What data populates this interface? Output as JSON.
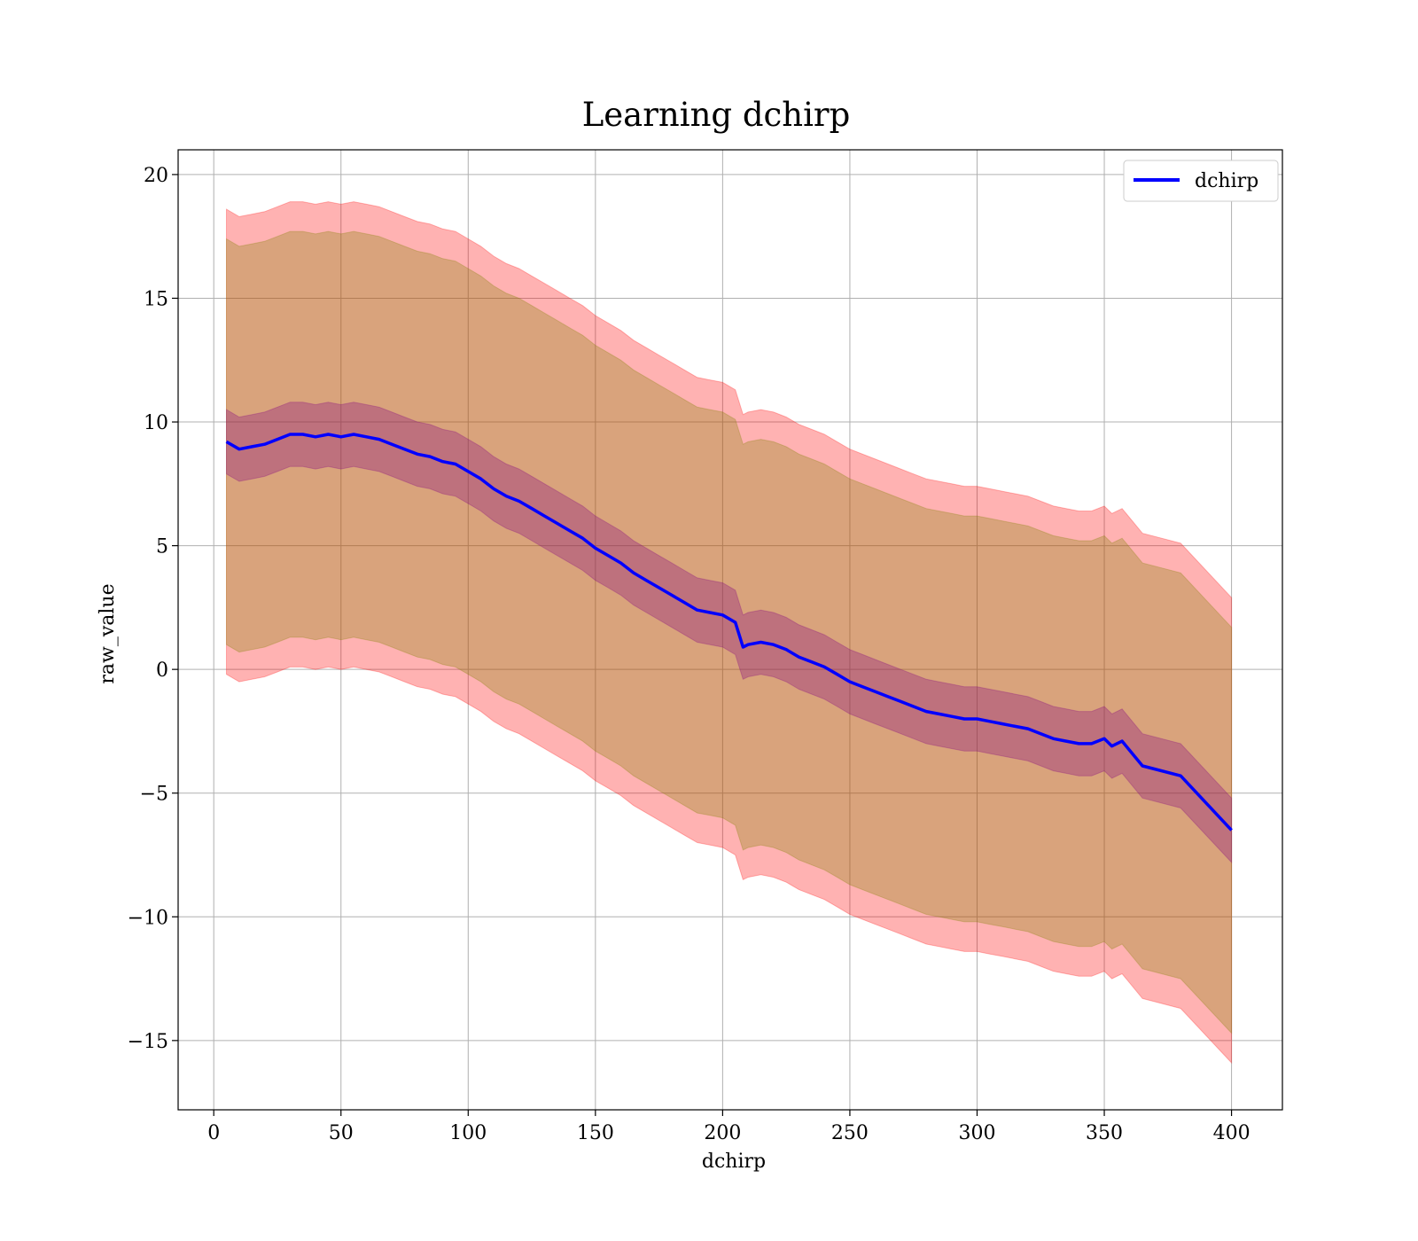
{
  "chart_data": {
    "type": "line",
    "title": "Learning dchirp",
    "xlabel": "dchirp",
    "ylabel": "raw_value",
    "xlim": [
      -14,
      420
    ],
    "ylim": [
      -17.8,
      21.0
    ],
    "xticks": [
      0,
      50,
      100,
      150,
      200,
      250,
      300,
      350,
      400
    ],
    "xtick_labels": [
      "0",
      "50",
      "100",
      "150",
      "200",
      "250",
      "300",
      "350",
      "400"
    ],
    "yticks": [
      -15,
      -10,
      -5,
      0,
      5,
      10,
      15,
      20
    ],
    "ytick_labels": [
      "−15",
      "−10",
      "−5",
      "0",
      "5",
      "10",
      "15",
      "20"
    ],
    "grid": true,
    "legend_position": "top-right",
    "colors": {
      "line": "#0000ff",
      "outer_band": "#ff0000",
      "mid_band": "#808000",
      "inner_band": "#800080",
      "grid": "#b0b0b0"
    },
    "series": [
      {
        "name": "dchirp",
        "x": [
          5,
          10,
          15,
          20,
          25,
          30,
          35,
          40,
          45,
          50,
          55,
          60,
          65,
          70,
          75,
          80,
          85,
          90,
          95,
          100,
          105,
          110,
          115,
          120,
          125,
          130,
          135,
          140,
          145,
          150,
          155,
          160,
          165,
          170,
          175,
          180,
          185,
          190,
          195,
          200,
          205,
          208,
          210,
          215,
          220,
          225,
          230,
          235,
          240,
          245,
          250,
          255,
          260,
          265,
          270,
          275,
          280,
          285,
          290,
          295,
          300,
          305,
          310,
          315,
          320,
          325,
          330,
          335,
          340,
          345,
          350,
          353,
          357,
          365,
          380,
          400
        ],
        "y": [
          9.2,
          8.9,
          9.0,
          9.1,
          9.3,
          9.5,
          9.5,
          9.4,
          9.5,
          9.4,
          9.5,
          9.4,
          9.3,
          9.1,
          8.9,
          8.7,
          8.6,
          8.4,
          8.3,
          8.0,
          7.7,
          7.3,
          7.0,
          6.8,
          6.5,
          6.2,
          5.9,
          5.6,
          5.3,
          4.9,
          4.6,
          4.3,
          3.9,
          3.6,
          3.3,
          3.0,
          2.7,
          2.4,
          2.3,
          2.2,
          1.9,
          0.9,
          1.0,
          1.1,
          1.0,
          0.8,
          0.5,
          0.3,
          0.1,
          -0.2,
          -0.5,
          -0.7,
          -0.9,
          -1.1,
          -1.3,
          -1.5,
          -1.7,
          -1.8,
          -1.9,
          -2.0,
          -2.0,
          -2.1,
          -2.2,
          -2.3,
          -2.4,
          -2.6,
          -2.8,
          -2.9,
          -3.0,
          -3.0,
          -2.8,
          -3.1,
          -2.9,
          -3.9,
          -4.3,
          -6.5
        ],
        "inner_band_halfwidth": 1.3,
        "mid_band_halfwidth": 8.2,
        "outer_band_halfwidth": 9.4
      }
    ]
  }
}
